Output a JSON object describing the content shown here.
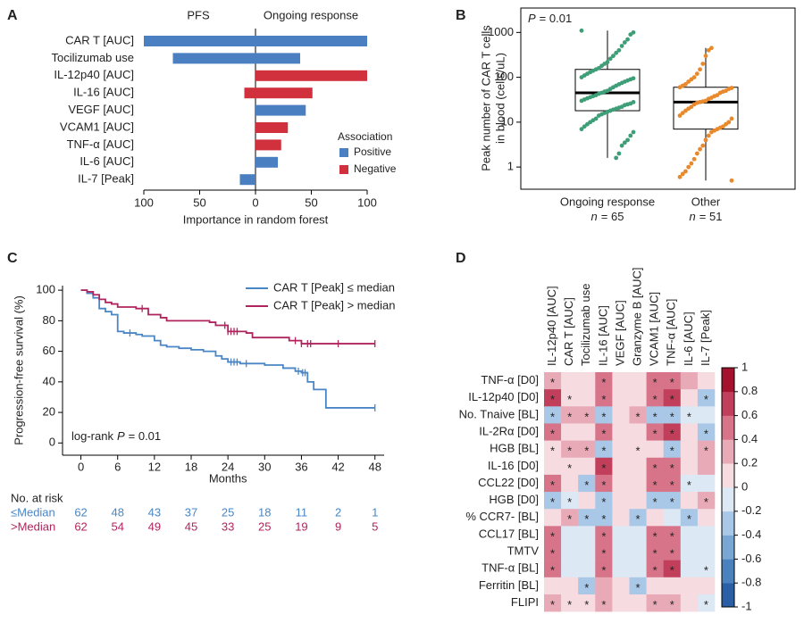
{
  "chart_data": [
    {
      "type": "bar",
      "panel": "A",
      "categories": [
        "CAR T [AUC]",
        "Tocilizumab use",
        "IL-12p40 [AUC]",
        "IL-16 [AUC]",
        "VEGF [AUC]",
        "VCAM1 [AUC]",
        "TNF-α [AUC]",
        "IL-6 [AUC]",
        "IL-7 [Peak]"
      ],
      "series": [
        {
          "name": "PFS",
          "values": [
            -100,
            -74,
            null,
            -10,
            null,
            null,
            null,
            null,
            -14
          ]
        },
        {
          "name": "Ongoing response",
          "values": [
            100,
            40,
            100,
            51,
            45,
            29,
            23,
            20,
            null
          ]
        }
      ],
      "association": [
        "Positive",
        "Positive",
        "Negative",
        "Negative",
        "Positive",
        "Negative",
        "Negative",
        "Positive",
        "Positive"
      ],
      "legend": {
        "title": "Association",
        "items": [
          {
            "name": "Positive",
            "color": "#4a7fc1"
          },
          {
            "name": "Negative",
            "color": "#d1313d"
          }
        ]
      },
      "xlabel": "Importance in random forest",
      "xlim": [
        -100,
        100
      ],
      "xticks": [
        {
          "value": -100,
          "label": "100"
        },
        {
          "value": -50,
          "label": "50"
        },
        0,
        50,
        100
      ]
    },
    {
      "type": "box",
      "panel": "B",
      "ylabel": [
        "Peak number of CAR T cells",
        "in blood (cells/uL)"
      ],
      "annotation": {
        "symbol": "P",
        "text": "= 0.01"
      },
      "categories": [
        "Ongoing response",
        "Other"
      ],
      "n_labels": [
        {
          "symbol": "n",
          "text": "= 65"
        },
        {
          "symbol": "n",
          "text": "= 51"
        }
      ],
      "colors": [
        "#3e9e77",
        "#e8892b"
      ],
      "points": [
        [
          1100,
          1000,
          900,
          700,
          600,
          500,
          400,
          350,
          300,
          260,
          220,
          200,
          180,
          160,
          150,
          140,
          130,
          120,
          110,
          100,
          95,
          90,
          85,
          80,
          75,
          70,
          65,
          60,
          55,
          50,
          48,
          45,
          43,
          40,
          38,
          36,
          34,
          32,
          30,
          28,
          26,
          25,
          24,
          22,
          21,
          20,
          19,
          18,
          17,
          16,
          15,
          14,
          12,
          11,
          10,
          9,
          8,
          7,
          6,
          5,
          4,
          3.5,
          3,
          2,
          1.6
        ],
        [
          450,
          400,
          300,
          200,
          150,
          120,
          100,
          90,
          80,
          70,
          65,
          60,
          58,
          55,
          50,
          48,
          45,
          40,
          38,
          35,
          33,
          30,
          29,
          28,
          27,
          25,
          22,
          20,
          18,
          16,
          14,
          12,
          10,
          9,
          8,
          7.5,
          7,
          6.5,
          6,
          5,
          4,
          3,
          2.5,
          2,
          1.5,
          1.2,
          1,
          0.8,
          0.7,
          0.6,
          0.5
        ]
      ],
      "boxes": [
        {
          "whislo": 1.6,
          "q1": 18,
          "median": 45,
          "q3": 150,
          "whishi": 1100
        },
        {
          "whislo": 0.5,
          "q1": 7,
          "median": 28,
          "q3": 60,
          "whishi": 450
        }
      ],
      "log_y": true,
      "ylim": [
        0.32,
        3500
      ],
      "yticks": [
        1,
        10,
        100,
        1000
      ]
    },
    {
      "type": "line",
      "panel": "C",
      "step": true,
      "ylabel": "Progression-free survival (%)",
      "xlabel": "Months",
      "series": [
        {
          "name": "CAR T [Peak] ≤ median",
          "color": "#4a86c5",
          "x": [
            0,
            1,
            2,
            3,
            4,
            5,
            6,
            7,
            9,
            10,
            12,
            13,
            14,
            16,
            18,
            20,
            22,
            23,
            24,
            26,
            30,
            33,
            35,
            36,
            37,
            38,
            40,
            48
          ],
          "values": [
            100,
            98,
            95,
            88,
            86,
            84,
            73,
            72,
            71,
            70,
            67,
            64,
            63,
            62,
            61,
            60,
            57,
            55,
            53,
            52,
            51,
            49,
            47,
            46,
            40,
            35,
            23,
            23
          ],
          "censor_x": [
            8,
            24.5,
            25,
            25.5,
            27,
            35.5,
            36.2,
            36.6,
            48
          ]
        },
        {
          "name": "CAR T [Peak] > median",
          "color": "#b0245e",
          "x": [
            0,
            1,
            2,
            3,
            4,
            5,
            6,
            9,
            11,
            13,
            14,
            21,
            22,
            24,
            27,
            28,
            34,
            36,
            48
          ],
          "values": [
            100,
            99,
            97,
            94,
            92,
            91,
            89,
            88,
            84,
            82,
            80,
            79,
            77,
            73,
            72,
            69,
            67,
            65,
            65
          ],
          "censor_x": [
            10,
            23.5,
            24,
            24.5,
            25,
            25.5,
            35,
            36,
            37,
            37.5,
            42,
            48
          ]
        }
      ],
      "annotation": {
        "text": "log-rank",
        "symbol": "P",
        "value_text": "= 0.01"
      },
      "xlim": [
        -3,
        49.5
      ],
      "xticks": [
        0,
        6,
        12,
        18,
        24,
        30,
        36,
        42,
        48
      ],
      "ylim": [
        -8,
        103
      ],
      "yticks": [
        0,
        20,
        40,
        60,
        80,
        100
      ],
      "risk_table": {
        "title": "No. at risk",
        "rows": [
          {
            "label": "≤Median",
            "values": [
              62,
              48,
              43,
              37,
              25,
              18,
              11,
              2,
              1
            ]
          },
          {
            "label": ">Median",
            "values": [
              62,
              54,
              49,
              45,
              33,
              25,
              19,
              9,
              5
            ]
          }
        ]
      }
    },
    {
      "type": "heatmap",
      "panel": "D",
      "columns": [
        "IL-12p40 [AUC]",
        "CAR T [AUC]",
        "Tocilizumab use",
        "IL-16 [AUC]",
        "VEGF [AUC]",
        "Granzyme B [AUC]",
        "VCAM1 [AUC]",
        "TNF-α [AUC]",
        "IL-6 [AUC]",
        "IL-7 [Peak]"
      ],
      "rows": [
        "TNF-α [D0]",
        "IL-12p40 [D0]",
        "No. Tnaive [BL]",
        "IL-2Rα [D0]",
        "HGB [BL]",
        "IL-16 [D0]",
        "CCL22 [D0]",
        "HGB [D0]",
        "% CCR7- [BL]",
        "CCL17 [BL]",
        "TMTV",
        "TNF-α [BL]",
        "Ferritin [BL]",
        "FLIPI"
      ],
      "values": [
        [
          0.3,
          0.1,
          0.1,
          0.4,
          0.05,
          0.1,
          0.4,
          0.5,
          0.2,
          0
        ],
        [
          0.7,
          0.1,
          0.1,
          0.4,
          0.05,
          0.1,
          0.4,
          0.6,
          0.1,
          -0.3
        ],
        [
          -0.3,
          0.3,
          0.3,
          -0.3,
          0.1,
          0.3,
          -0.3,
          -0.3,
          -0.1,
          -0.15
        ],
        [
          0.4,
          0.1,
          0.1,
          0.4,
          0.05,
          0.1,
          0.4,
          0.6,
          0.1,
          -0.3
        ],
        [
          0.1,
          0.3,
          0.2,
          -0.3,
          0.05,
          0.1,
          0.1,
          -0.3,
          0.05,
          0.3
        ],
        [
          0.1,
          0.1,
          0.05,
          0.7,
          0.05,
          0.1,
          0.4,
          0.4,
          0.1,
          0.2
        ],
        [
          0.4,
          0.1,
          -0.3,
          0.4,
          0.05,
          0.1,
          0.4,
          0.4,
          -0.2,
          -0.2
        ],
        [
          -0.3,
          -0.2,
          0.05,
          -0.3,
          0.05,
          0.1,
          -0.3,
          -0.4,
          0.05,
          0.3
        ],
        [
          0.1,
          0.3,
          -0.3,
          -0.3,
          0.05,
          -0.3,
          0.05,
          -0.1,
          -0.3,
          0.05
        ],
        [
          0.5,
          -0.1,
          -0.1,
          0.4,
          -0.1,
          -0.1,
          0.4,
          0.5,
          -0.1,
          -0.1
        ],
        [
          0.4,
          -0.1,
          -0.1,
          0.4,
          -0.1,
          -0.1,
          0.4,
          0.5,
          -0.1,
          -0.1
        ],
        [
          0.5,
          -0.1,
          -0.1,
          0.4,
          -0.1,
          -0.1,
          0.5,
          0.6,
          -0.1,
          -0.1
        ],
        [
          0.1,
          0.05,
          -0.3,
          0.2,
          0.05,
          -0.4,
          0.1,
          0.1,
          0.05,
          0.05
        ],
        [
          0.3,
          0.1,
          0.1,
          0.3,
          0.1,
          0.05,
          0.3,
          0.3,
          0.05,
          -0.1
        ]
      ],
      "significant": [
        [
          1,
          0,
          0,
          1,
          0,
          0,
          1,
          1,
          0,
          0
        ],
        [
          1,
          1,
          0,
          1,
          0,
          0,
          1,
          1,
          0,
          1
        ],
        [
          1,
          1,
          1,
          1,
          0,
          1,
          1,
          1,
          1,
          0
        ],
        [
          1,
          0,
          0,
          1,
          0,
          0,
          1,
          1,
          0,
          1
        ],
        [
          1,
          1,
          1,
          1,
          0,
          1,
          0,
          1,
          0,
          1
        ],
        [
          0,
          1,
          0,
          1,
          0,
          0,
          1,
          1,
          0,
          0
        ],
        [
          1,
          0,
          1,
          1,
          0,
          0,
          1,
          1,
          1,
          0
        ],
        [
          1,
          1,
          0,
          1,
          0,
          0,
          1,
          1,
          0,
          1
        ],
        [
          0,
          1,
          1,
          1,
          0,
          1,
          0,
          0,
          1,
          0
        ],
        [
          1,
          0,
          0,
          1,
          0,
          0,
          1,
          1,
          0,
          0
        ],
        [
          1,
          0,
          0,
          1,
          0,
          0,
          1,
          1,
          0,
          0
        ],
        [
          1,
          0,
          0,
          1,
          0,
          0,
          1,
          1,
          0,
          1
        ],
        [
          0,
          0,
          1,
          0,
          0,
          1,
          0,
          0,
          0,
          0
        ],
        [
          1,
          1,
          1,
          1,
          0,
          0,
          1,
          1,
          0,
          1
        ]
      ],
      "significance_symbol": "*",
      "colorbar": {
        "lim": [
          -1,
          1
        ],
        "ticks": [
          -1,
          -0.8,
          -0.6,
          -0.4,
          -0.2,
          0,
          0.2,
          0.4,
          0.6,
          0.8,
          1
        ],
        "colors": [
          "#2a5fa5",
          "#4a82bd",
          "#7aa6d3",
          "#a9c7e6",
          "#dce8f4",
          "#f6dbe1",
          "#e9aab8",
          "#d77489",
          "#c13f5b",
          "#a5122d"
        ]
      }
    }
  ]
}
